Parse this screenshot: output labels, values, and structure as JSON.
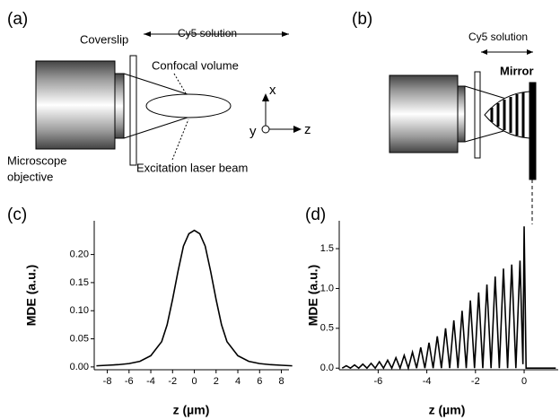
{
  "diagram": {
    "panel_a": "(a)",
    "panel_b": "(b)",
    "coverslip": "Coverslip",
    "cy5_a": "Cy5 solution",
    "confocal": "Confocal volume",
    "objective_1": "Microscope",
    "objective_2": "objective",
    "laser": "Excitation laser beam",
    "axis_x": "x",
    "axis_y": "y",
    "axis_z": "z",
    "cy5_b": "Cy5 solution",
    "mirror": "Mirror"
  },
  "chart_data": [
    {
      "type": "line",
      "label": "(c)",
      "xlabel": "z (µm)",
      "ylabel": "MDE (a.u.)",
      "color": "#000000",
      "x": [
        -9,
        -8,
        -7,
        -6,
        -5,
        -4,
        -3,
        -2.5,
        -2,
        -1.5,
        -1,
        -0.5,
        0,
        0.5,
        1,
        1.5,
        2,
        2.5,
        3,
        4,
        5,
        6,
        7,
        8,
        9
      ],
      "values": [
        0.002,
        0.003,
        0.004,
        0.006,
        0.01,
        0.02,
        0.045,
        0.075,
        0.12,
        0.17,
        0.215,
        0.237,
        0.243,
        0.237,
        0.215,
        0.17,
        0.12,
        0.075,
        0.045,
        0.02,
        0.01,
        0.006,
        0.004,
        0.003,
        0.002
      ],
      "xlim": [
        -9.2,
        8.7
      ],
      "ylim": [
        -0.005,
        0.26
      ],
      "xticks": [
        -8,
        -6,
        -4,
        -2,
        0,
        2,
        4,
        6,
        8
      ],
      "yticks": [
        {
          "value": 0,
          "label": "0.00"
        },
        0.05,
        {
          "value": 0.1,
          "label": "0.10"
        },
        0.15,
        {
          "value": 0.2,
          "label": "0.20"
        }
      ]
    },
    {
      "type": "line",
      "label": "(d)",
      "xlabel": "z (µm)",
      "ylabel": "MDE (a.u.)",
      "color": "#000000",
      "x": [
        -7.48,
        -7.31,
        -7.14,
        -6.97,
        -6.8,
        -6.63,
        -6.46,
        -6.29,
        -6.12,
        -5.95,
        -5.78,
        -5.61,
        -5.44,
        -5.27,
        -5.1,
        -4.93,
        -4.76,
        -4.59,
        -4.42,
        -4.25,
        -4.08,
        -3.91,
        -3.74,
        -3.57,
        -3.4,
        -3.23,
        -3.06,
        -2.89,
        -2.72,
        -2.55,
        -2.38,
        -2.21,
        -2.04,
        -1.87,
        -1.7,
        -1.53,
        -1.36,
        -1.19,
        -1.02,
        -0.85,
        -0.68,
        -0.51,
        -0.34,
        -0.17,
        -0.05,
        0,
        0.08,
        1.3
      ],
      "values": [
        0,
        0.03,
        0,
        0.04,
        0,
        0.05,
        0,
        0.06,
        0,
        0.08,
        0,
        0.1,
        0,
        0.13,
        0,
        0.16,
        0,
        0.2,
        0,
        0.26,
        0,
        0.32,
        0,
        0.4,
        0,
        0.5,
        0,
        0.6,
        0,
        0.72,
        0,
        0.85,
        0,
        0.95,
        0,
        1.05,
        0,
        1.15,
        0,
        1.25,
        0,
        1.3,
        0,
        1.35,
        0.05,
        1.78,
        0,
        0
      ],
      "xlim": [
        -7.6,
        1.4
      ],
      "ylim": [
        -0.02,
        1.85
      ],
      "xticks": [
        -6,
        -4,
        -2,
        0
      ],
      "yticks": [
        {
          "value": 0,
          "label": "0.0"
        },
        0.5,
        {
          "value": 1,
          "label": "1.0"
        },
        1.5
      ]
    }
  ]
}
